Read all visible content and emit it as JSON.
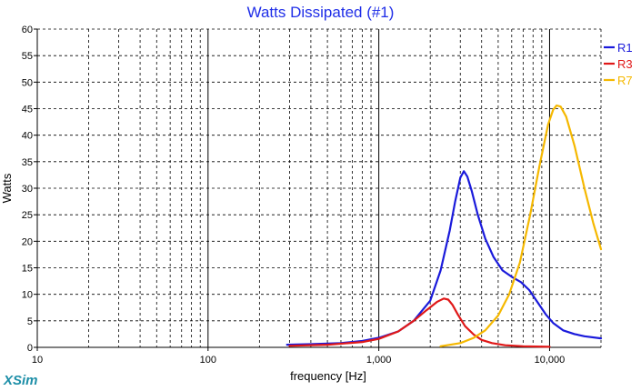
{
  "chart_data": {
    "type": "line",
    "title": "Watts Dissipated (#1)",
    "xlabel": "frequency [Hz]",
    "ylabel": "Watts",
    "x_scale": "log",
    "xlim": [
      10,
      20000
    ],
    "ylim": [
      0,
      60
    ],
    "x_ticks": [
      10,
      100,
      1000,
      10000
    ],
    "x_tick_labels": [
      "10",
      "100",
      "1,000",
      "10,000"
    ],
    "y_ticks": [
      0,
      5,
      10,
      15,
      20,
      25,
      30,
      35,
      40,
      45,
      50,
      55,
      60
    ],
    "grid": true,
    "legend_position": "top-right",
    "series": [
      {
        "name": "R1",
        "color": "#1a1adb",
        "x": [
          290,
          400,
          600,
          800,
          1000,
          1300,
          1600,
          2000,
          2300,
          2600,
          2800,
          3000,
          3150,
          3300,
          3500,
          3800,
          4200,
          4700,
          5300,
          6000,
          6800,
          7600,
          8500,
          9500,
          10500,
          12000,
          14000,
          16000,
          20000
        ],
        "values": [
          0.5,
          0.6,
          0.8,
          1.2,
          1.8,
          3.0,
          5.0,
          8.8,
          14.5,
          22.0,
          27.5,
          32.0,
          33.2,
          32.2,
          29.5,
          25.0,
          20.5,
          17.0,
          14.5,
          13.3,
          12.3,
          10.8,
          8.5,
          6.2,
          4.6,
          3.2,
          2.5,
          2.1,
          1.7
        ]
      },
      {
        "name": "R3",
        "color": "#e01818",
        "x": [
          300,
          500,
          800,
          1000,
          1300,
          1600,
          1900,
          2200,
          2400,
          2550,
          2700,
          2900,
          3200,
          3600,
          4000,
          4600,
          5500,
          7000,
          10000
        ],
        "values": [
          0.3,
          0.5,
          1.0,
          1.6,
          3.0,
          5.0,
          7.0,
          8.6,
          9.2,
          9.0,
          8.0,
          6.2,
          4.0,
          2.4,
          1.4,
          0.8,
          0.4,
          0.2,
          0.1
        ]
      },
      {
        "name": "R7",
        "color": "#f5b800",
        "x": [
          2300,
          3000,
          3600,
          4200,
          5000,
          5800,
          6700,
          7700,
          8700,
          9800,
          10500,
          11000,
          11600,
          12500,
          14000,
          16000,
          18000,
          20000
        ],
        "values": [
          0.2,
          0.8,
          1.8,
          3.2,
          6.0,
          10.0,
          16.0,
          25.0,
          34.0,
          42.0,
          44.8,
          45.6,
          45.4,
          43.5,
          38.0,
          30.0,
          23.5,
          18.5
        ]
      }
    ]
  },
  "footer": {
    "brand": "XSim"
  }
}
